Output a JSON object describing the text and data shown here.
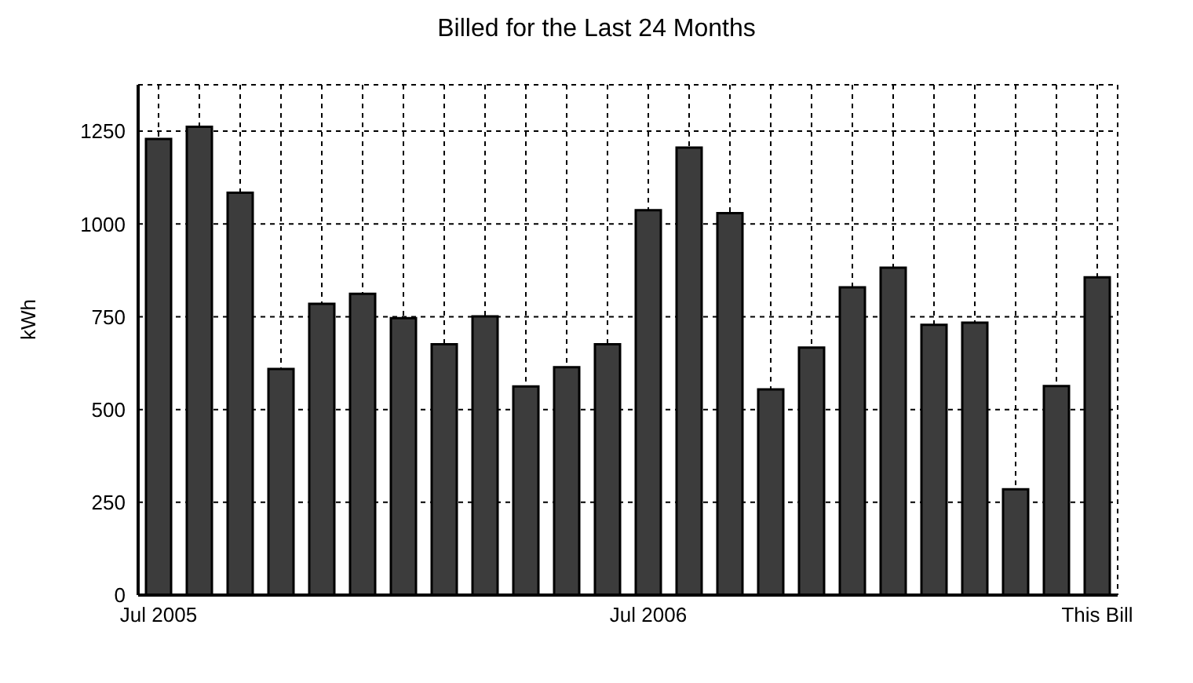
{
  "chart_data": {
    "type": "bar",
    "title": "Billed for the Last 24 Months",
    "ylabel": "kWh",
    "categories": [
      "Jul 2005",
      null,
      null,
      null,
      null,
      null,
      null,
      null,
      null,
      null,
      null,
      null,
      "Jul 2006",
      null,
      null,
      null,
      null,
      null,
      null,
      null,
      null,
      null,
      null,
      "This Bill"
    ],
    "values": [
      1229,
      1262,
      1084,
      609,
      785,
      812,
      746,
      676,
      751,
      562,
      614,
      676,
      1037,
      1206,
      1029,
      554,
      667,
      829,
      882,
      728,
      734,
      285,
      563,
      856
    ],
    "color": "#3c3c3c",
    "ylim": [
      0,
      1375
    ],
    "yticks": [
      0,
      250,
      500,
      750,
      1000,
      1250
    ],
    "grid": true
  }
}
